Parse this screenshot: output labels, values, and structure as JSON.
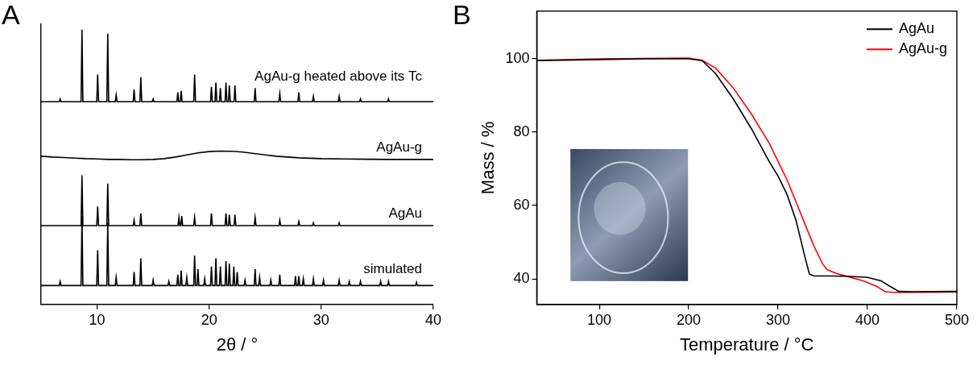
{
  "chart_data": [
    {
      "panel": "A",
      "type": "line",
      "x_label": "2θ / °",
      "xlim": [
        5,
        40
      ],
      "xticks": [
        10,
        20,
        30,
        40
      ],
      "ylim": [
        0,
        10.3
      ],
      "tick_labels": "x",
      "grid": false,
      "series": [
        {
          "name": "simulated",
          "color": "#000000",
          "x": [
            5,
            6.62,
            6.7,
            6.78,
            8.57,
            8.65,
            8.73,
            9.97,
            10.05,
            10.13,
            10.87,
            10.95,
            11.03,
            11.62,
            11.7,
            11.78,
            13.22,
            13.3,
            13.38,
            13.82,
            13.9,
            13.98,
            14.92,
            15,
            15.08,
            16.32,
            16.4,
            16.48,
            17.12,
            17.2,
            17.28,
            17.42,
            17.5,
            17.58,
            17.92,
            18,
            18.08,
            18.62,
            18.7,
            18.78,
            18.92,
            19,
            19.08,
            19.52,
            19.6,
            19.68,
            20.12,
            20.2,
            20.28,
            20.52,
            20.6,
            20.68,
            20.92,
            21,
            21.08,
            21.42,
            21.5,
            21.58,
            21.72,
            21.8,
            21.88,
            22.12,
            22.2,
            22.28,
            22.42,
            22.5,
            22.58,
            23.12,
            23.2,
            23.28,
            24.02,
            24.1,
            24.18,
            24.42,
            24.5,
            24.58,
            25.42,
            25.5,
            25.58,
            26.22,
            26.3,
            26.38,
            27.62,
            27.7,
            27.78,
            27.92,
            28,
            28.08,
            28.32,
            28.4,
            28.48,
            29.22,
            29.3,
            29.38,
            30.12,
            30.2,
            30.28,
            31.52,
            31.6,
            31.68,
            32.42,
            32.5,
            32.58,
            33.42,
            33.5,
            33.58,
            35.22,
            35.3,
            35.38,
            35.92,
            36,
            36.08,
            38.42,
            38.5,
            38.58,
            40
          ],
          "values": [
            0.7,
            0.7,
            0.85,
            0.7,
            0.7,
            3.25,
            0.7,
            0.7,
            2.0,
            0.7,
            0.7,
            3.0,
            0.7,
            0.7,
            1.0,
            0.7,
            0.7,
            1.2,
            0.7,
            0.7,
            1.7,
            0.7,
            0.7,
            0.9,
            0.7,
            0.7,
            0.85,
            0.7,
            0.7,
            1.1,
            0.7,
            0.7,
            1.25,
            0.7,
            0.7,
            1.0,
            0.7,
            0.7,
            1.8,
            0.7,
            0.7,
            1.3,
            0.7,
            0.7,
            0.95,
            0.7,
            0.7,
            1.4,
            0.7,
            0.7,
            1.7,
            0.7,
            0.7,
            1.4,
            0.7,
            0.7,
            1.6,
            0.7,
            0.7,
            1.5,
            0.7,
            0.7,
            1.4,
            0.7,
            0.7,
            1.2,
            0.7,
            0.7,
            0.9,
            0.7,
            0.7,
            1.3,
            0.7,
            0.7,
            1.0,
            0.7,
            0.7,
            0.9,
            0.7,
            0.7,
            1.1,
            0.7,
            0.7,
            1.05,
            0.7,
            0.7,
            1.05,
            0.7,
            0.7,
            0.95,
            0.7,
            0.7,
            0.95,
            0.7,
            0.7,
            0.9,
            0.7,
            0.7,
            0.9,
            0.7,
            0.7,
            0.85,
            0.7,
            0.7,
            0.85,
            0.7,
            0.7,
            0.85,
            0.7,
            0.7,
            0.85,
            0.7,
            0.7,
            0.82,
            0.7,
            0.7
          ]
        },
        {
          "name": "AgAu",
          "color": "#000000",
          "x": [
            5,
            8.57,
            8.65,
            8.73,
            9.97,
            10.05,
            10.13,
            10.87,
            10.95,
            11.03,
            13.22,
            13.3,
            13.38,
            13.82,
            13.9,
            13.98,
            17.22,
            17.3,
            17.38,
            17.47,
            17.55,
            17.63,
            18.62,
            18.7,
            18.78,
            20.12,
            20.2,
            20.28,
            21.42,
            21.5,
            21.58,
            21.72,
            21.8,
            21.88,
            22.22,
            22.3,
            22.38,
            24.02,
            24.1,
            24.18,
            26.22,
            26.3,
            26.38,
            27.92,
            28,
            28.08,
            29.22,
            29.3,
            29.38,
            31.52,
            31.6,
            31.68,
            40
          ],
          "values": [
            2.9,
            2.9,
            4.75,
            2.9,
            2.9,
            3.6,
            2.9,
            2.9,
            4.45,
            2.9,
            2.9,
            3.1,
            2.9,
            2.9,
            3.35,
            2.9,
            2.9,
            3.2,
            2.9,
            2.9,
            3.25,
            2.9,
            2.9,
            3.2,
            2.9,
            2.9,
            3.35,
            2.9,
            2.9,
            3.35,
            2.9,
            2.9,
            3.3,
            2.9,
            2.9,
            3.3,
            2.9,
            2.9,
            3.2,
            2.9,
            2.9,
            3.1,
            2.9,
            2.9,
            3.05,
            2.9,
            2.9,
            3.0,
            2.9,
            2.9,
            3.0,
            2.9,
            2.9
          ]
        },
        {
          "name": "AgAu-g",
          "color": "#000000",
          "x": [
            5,
            6,
            7,
            8,
            9,
            10,
            11,
            12,
            13,
            14,
            15,
            16,
            17,
            18,
            19,
            20,
            21,
            22,
            23,
            24,
            25,
            26,
            27,
            28,
            30,
            32,
            34,
            36,
            38,
            40
          ],
          "values": [
            5.45,
            5.42,
            5.4,
            5.38,
            5.36,
            5.35,
            5.33,
            5.33,
            5.32,
            5.32,
            5.33,
            5.36,
            5.42,
            5.5,
            5.57,
            5.62,
            5.64,
            5.63,
            5.6,
            5.55,
            5.5,
            5.45,
            5.42,
            5.39,
            5.36,
            5.35,
            5.34,
            5.33,
            5.33,
            5.33
          ]
        },
        {
          "name": "AgAu-g heated above its Tc",
          "color": "#000000",
          "x": [
            5,
            6.62,
            6.7,
            6.78,
            8.57,
            8.65,
            8.73,
            9.97,
            10.05,
            10.13,
            10.87,
            10.95,
            11.03,
            11.62,
            11.7,
            11.78,
            13.22,
            13.3,
            13.38,
            13.82,
            13.9,
            13.98,
            14.92,
            15,
            15.08,
            17.12,
            17.2,
            17.28,
            17.42,
            17.5,
            17.58,
            18.62,
            18.7,
            18.78,
            20.12,
            20.2,
            20.28,
            20.52,
            20.6,
            20.68,
            20.92,
            21,
            21.08,
            21.42,
            21.5,
            21.58,
            21.72,
            21.8,
            21.88,
            22.22,
            22.3,
            22.38,
            24.02,
            24.1,
            24.18,
            26.22,
            26.3,
            26.38,
            27.92,
            28,
            28.08,
            29.22,
            29.3,
            29.38,
            31.52,
            31.6,
            31.68,
            33.42,
            33.5,
            33.58,
            35.92,
            36,
            36.08,
            40
          ],
          "values": [
            7.45,
            7.45,
            7.55,
            7.45,
            7.45,
            10.1,
            7.45,
            7.45,
            8.45,
            7.45,
            7.45,
            9.95,
            7.45,
            7.45,
            7.7,
            7.45,
            7.45,
            7.9,
            7.45,
            7.45,
            8.35,
            7.45,
            7.45,
            7.55,
            7.45,
            7.45,
            7.8,
            7.45,
            7.45,
            7.85,
            7.45,
            7.45,
            8.45,
            7.45,
            7.45,
            8.0,
            7.45,
            7.45,
            8.15,
            7.45,
            7.45,
            7.95,
            7.45,
            7.45,
            8.15,
            7.45,
            7.45,
            8.05,
            7.45,
            7.45,
            8.05,
            7.45,
            7.45,
            7.95,
            7.45,
            7.45,
            7.75,
            7.45,
            7.45,
            7.8,
            7.45,
            7.45,
            7.65,
            7.45,
            7.45,
            7.65,
            7.45,
            7.45,
            7.55,
            7.45,
            7.45,
            7.55,
            7.45,
            7.45
          ]
        }
      ]
    },
    {
      "panel": "B",
      "type": "line",
      "x_label": "Temperature / °C",
      "y_label": "Mass / %",
      "xlim": [
        30,
        500
      ],
      "xticks": [
        100,
        200,
        300,
        400,
        500
      ],
      "ylim": [
        33,
        113
      ],
      "yticks": [
        40,
        60,
        80,
        100
      ],
      "grid": false,
      "legend": "upper right",
      "series": [
        {
          "name": "AgAu",
          "color": "#000000",
          "x": [
            30,
            100,
            150,
            200,
            215,
            230,
            250,
            270,
            290,
            300,
            310,
            320,
            330,
            335,
            340,
            360,
            380,
            400,
            415,
            425,
            435,
            450,
            500
          ],
          "values": [
            99.5,
            99.8,
            100,
            100,
            99.5,
            96,
            89,
            81,
            72,
            68,
            63,
            56,
            46,
            41.3,
            40.8,
            40.8,
            40.7,
            40.4,
            39.5,
            38,
            36.6,
            36.5,
            36.6
          ]
        },
        {
          "name": "AgAu-g",
          "color": "#ff0000",
          "x": [
            30,
            100,
            200,
            215,
            230,
            250,
            270,
            290,
            300,
            310,
            320,
            330,
            340,
            350,
            355,
            365,
            380,
            395,
            410,
            420,
            430,
            500
          ],
          "values": [
            99.6,
            100,
            100.2,
            99.6,
            97.5,
            92,
            85,
            77,
            72,
            67,
            61,
            55,
            49,
            44,
            42.5,
            41.5,
            40.5,
            39.5,
            38,
            36.5,
            36.3,
            36.4
          ]
        }
      ]
    }
  ]
}
